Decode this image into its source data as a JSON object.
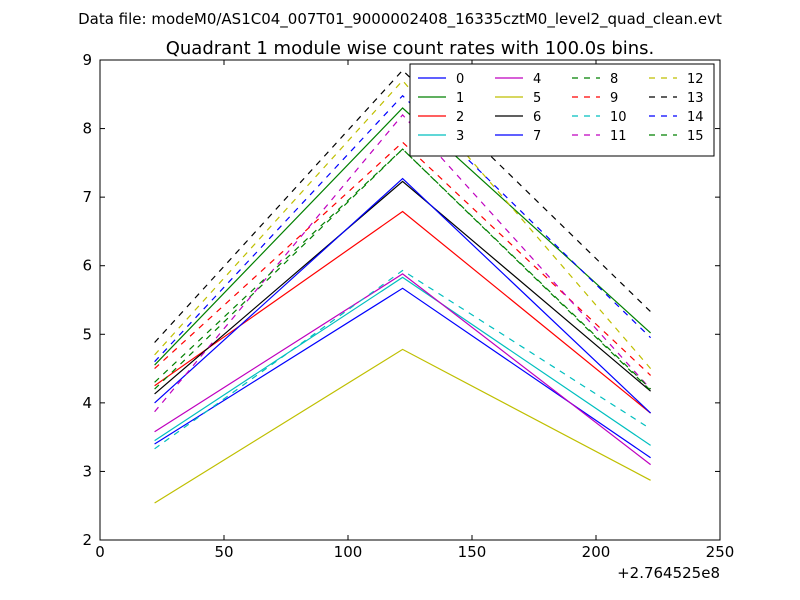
{
  "figure": {
    "suptitle": "Data file: modeM0/AS1C04_007T01_9000002408_16335cztM0_level2_quad_clean.evt"
  },
  "chart_data": {
    "type": "line",
    "title": "Quadrant 1 module wise count rates with 100.0s bins.",
    "xlabel": "",
    "ylabel": "",
    "x_offset_label": "+2.764525e8",
    "xlim": [
      0,
      250
    ],
    "ylim": [
      2,
      9
    ],
    "xticks": [
      0,
      50,
      100,
      150,
      200,
      250
    ],
    "yticks": [
      2,
      3,
      4,
      5,
      6,
      7,
      8,
      9
    ],
    "x": [
      22,
      122,
      222
    ],
    "legend": {
      "location": "upper right",
      "columns": 4
    },
    "series": [
      {
        "name": "0",
        "color": "#0000ff",
        "style": "solid",
        "values": [
          3.4,
          5.67,
          3.2
        ]
      },
      {
        "name": "1",
        "color": "#008000",
        "style": "solid",
        "values": [
          4.55,
          8.3,
          5.02
        ]
      },
      {
        "name": "2",
        "color": "#ff0000",
        "style": "solid",
        "values": [
          4.25,
          6.79,
          3.85
        ]
      },
      {
        "name": "3",
        "color": "#00bfbf",
        "style": "solid",
        "values": [
          3.45,
          5.83,
          3.38
        ]
      },
      {
        "name": "4",
        "color": "#bf00bf",
        "style": "solid",
        "values": [
          3.58,
          5.88,
          3.1
        ]
      },
      {
        "name": "5",
        "color": "#bfbf00",
        "style": "solid",
        "values": [
          2.54,
          4.78,
          2.87
        ]
      },
      {
        "name": "6",
        "color": "#000000",
        "style": "solid",
        "values": [
          4.13,
          7.23,
          4.17
        ]
      },
      {
        "name": "7",
        "color": "#0000ff",
        "style": "solid",
        "values": [
          4.0,
          7.27,
          3.85
        ]
      },
      {
        "name": "8",
        "color": "#008000",
        "style": "dashed",
        "values": [
          4.2,
          7.7,
          4.18
        ]
      },
      {
        "name": "9",
        "color": "#ff0000",
        "style": "dashed",
        "values": [
          4.5,
          7.8,
          4.4
        ]
      },
      {
        "name": "10",
        "color": "#00bfbf",
        "style": "dashed",
        "values": [
          3.33,
          5.93,
          3.62
        ]
      },
      {
        "name": "11",
        "color": "#bf00bf",
        "style": "dashed",
        "values": [
          3.87,
          8.2,
          4.2
        ]
      },
      {
        "name": "12",
        "color": "#bfbf00",
        "style": "dashed",
        "values": [
          4.7,
          8.7,
          4.5
        ]
      },
      {
        "name": "13",
        "color": "#000000",
        "style": "dashed",
        "values": [
          4.88,
          8.85,
          5.33
        ]
      },
      {
        "name": "14",
        "color": "#0000ff",
        "style": "dashed",
        "values": [
          4.6,
          8.48,
          4.95
        ]
      },
      {
        "name": "15",
        "color": "#008000",
        "style": "dashed",
        "values": [
          4.3,
          7.7,
          4.2
        ]
      }
    ]
  }
}
